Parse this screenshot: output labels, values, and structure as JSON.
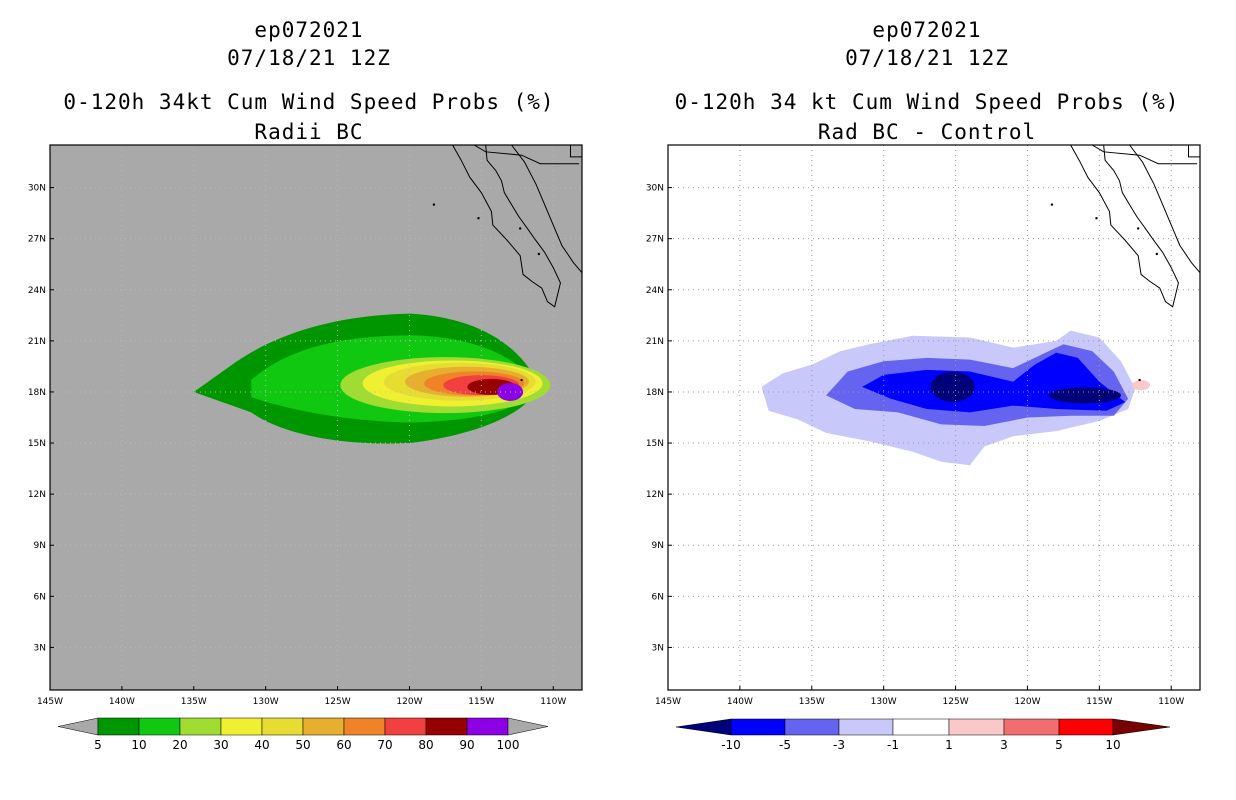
{
  "colors": {
    "land_gray": "#a9a9a9",
    "prob_levels": [
      "#009600",
      "#10c810",
      "#a0dc32",
      "#f0f032",
      "#e6dc32",
      "#e6af2d",
      "#f08228",
      "#f04040",
      "#960000",
      "#8c00e6"
    ],
    "diff_levels": [
      "#000078",
      "#0000ff",
      "#6464f0",
      "#c8c8fa",
      "#ffffff",
      "#fac8c8",
      "#f06e6e",
      "#ff0000",
      "#780000"
    ]
  },
  "chart_data": [
    {
      "type": "heatmap",
      "title": [
        "ep072021",
        "07/18/21 12Z",
        "0-120h 34kt Cum Wind Speed Probs (%)",
        "Radii BC"
      ],
      "x_ticks": [
        "145W",
        "140W",
        "135W",
        "130W",
        "125W",
        "120W",
        "115W",
        "110W"
      ],
      "y_ticks": [
        "30N",
        "27N",
        "24N",
        "21N",
        "18N",
        "15N",
        "12N",
        "9N",
        "6N",
        "3N"
      ],
      "xlim": [
        -145,
        -108
      ],
      "ylim": [
        0.5,
        32.5
      ],
      "colorbar_labels": [
        "5",
        "10",
        "20",
        "30",
        "40",
        "50",
        "60",
        "70",
        "80",
        "90",
        "100"
      ],
      "max_value_location": {
        "lon": -112,
        "lat": 18
      }
    },
    {
      "type": "heatmap",
      "title": [
        "ep072021",
        "07/18/21 12Z",
        "0-120h 34 kt Cum Wind Speed Probs (%)",
        "Rad BC - Control"
      ],
      "x_ticks": [
        "145W",
        "140W",
        "135W",
        "130W",
        "125W",
        "120W",
        "115W",
        "110W"
      ],
      "y_ticks": [
        "30N",
        "27N",
        "24N",
        "21N",
        "18N",
        "15N",
        "12N",
        "9N",
        "6N",
        "3N"
      ],
      "xlim": [
        -145,
        -108
      ],
      "ylim": [
        0.5,
        32.5
      ],
      "colorbar_labels": [
        "-10",
        "-5",
        "-3",
        "-1",
        "1",
        "3",
        "5",
        "10"
      ],
      "min_value_location": {
        "lon": -116,
        "lat": 17.5
      }
    }
  ]
}
